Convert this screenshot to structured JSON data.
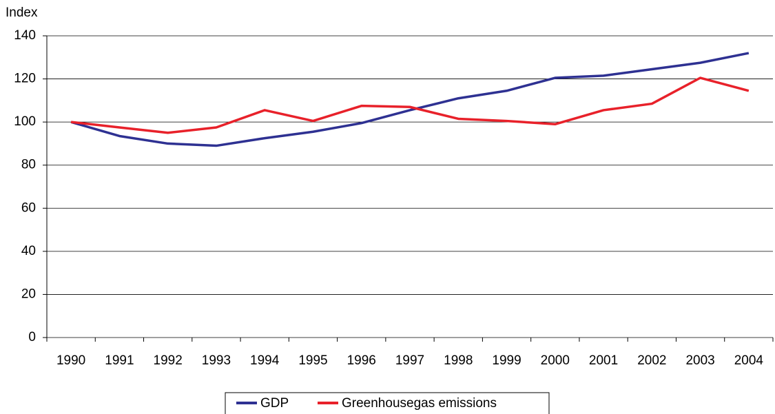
{
  "chart_data": {
    "type": "line",
    "y_label": "Index",
    "categories": [
      "1990",
      "1991",
      "1992",
      "1993",
      "1994",
      "1995",
      "1996",
      "1997",
      "1998",
      "1999",
      "2000",
      "2001",
      "2002",
      "2003",
      "2004"
    ],
    "series": [
      {
        "name": "GDP",
        "color": "#2e3192",
        "values": [
          100,
          93.5,
          90,
          89,
          92.5,
          95.5,
          99.5,
          105.5,
          111,
          114.5,
          120.5,
          121.5,
          124.5,
          127.5,
          132
        ]
      },
      {
        "name": "Greenhousegas emissions",
        "color": "#e8212a",
        "values": [
          100,
          97.5,
          95,
          97.5,
          105.5,
          100.5,
          107.5,
          107,
          101.5,
          100.5,
          99,
          105.5,
          108.5,
          120.5,
          114.5
        ]
      }
    ],
    "ylim": [
      0,
      140
    ],
    "yticks": [
      0,
      20,
      40,
      60,
      80,
      100,
      120,
      140
    ],
    "grid": true,
    "legend": "bottom"
  }
}
